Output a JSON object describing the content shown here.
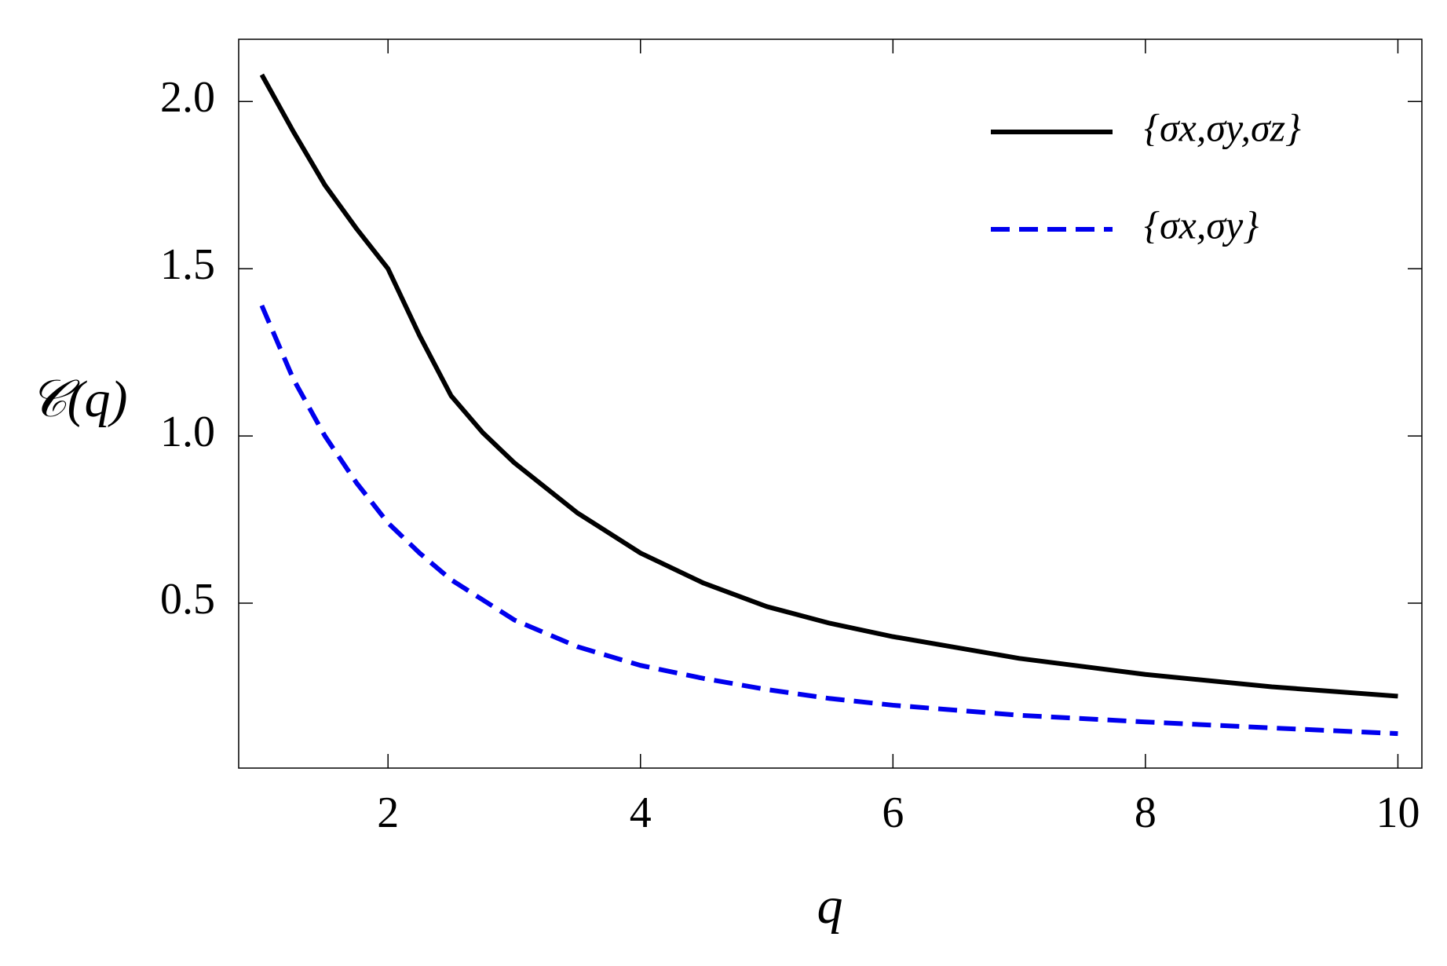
{
  "chart_data": {
    "type": "line",
    "x_label": "q",
    "y_label": "𝒞(q)",
    "x": [
      1,
      1.25,
      1.5,
      1.75,
      2,
      2.25,
      2.5,
      2.75,
      3,
      3.5,
      4,
      4.5,
      5,
      5.5,
      6,
      7,
      8,
      9,
      10
    ],
    "series": [
      {
        "name": "{σx,σy,σz}",
        "color": "#000000",
        "dash": false,
        "values": [
          2.08,
          1.91,
          1.75,
          1.62,
          1.5,
          1.3,
          1.12,
          1.01,
          0.92,
          0.77,
          0.65,
          0.56,
          0.49,
          0.44,
          0.4,
          0.335,
          0.287,
          0.25,
          0.222
        ]
      },
      {
        "name": "{σx,σy}",
        "color": "#0000ee",
        "dash": true,
        "values": [
          1.39,
          1.17,
          1.0,
          0.86,
          0.74,
          0.65,
          0.57,
          0.51,
          0.45,
          0.37,
          0.314,
          0.275,
          0.242,
          0.215,
          0.195,
          0.165,
          0.145,
          0.127,
          0.11
        ]
      }
    ],
    "xlim": [
      0.817,
      10.19
    ],
    "ylim": [
      0.007,
      2.186
    ],
    "xticks": [
      2,
      4,
      6,
      8,
      10
    ],
    "yticks": [
      0.5,
      {
        "value": 1,
        "label": "1.0"
      },
      1.5,
      {
        "value": 2,
        "label": "2.0"
      }
    ],
    "legend": "upper right"
  }
}
